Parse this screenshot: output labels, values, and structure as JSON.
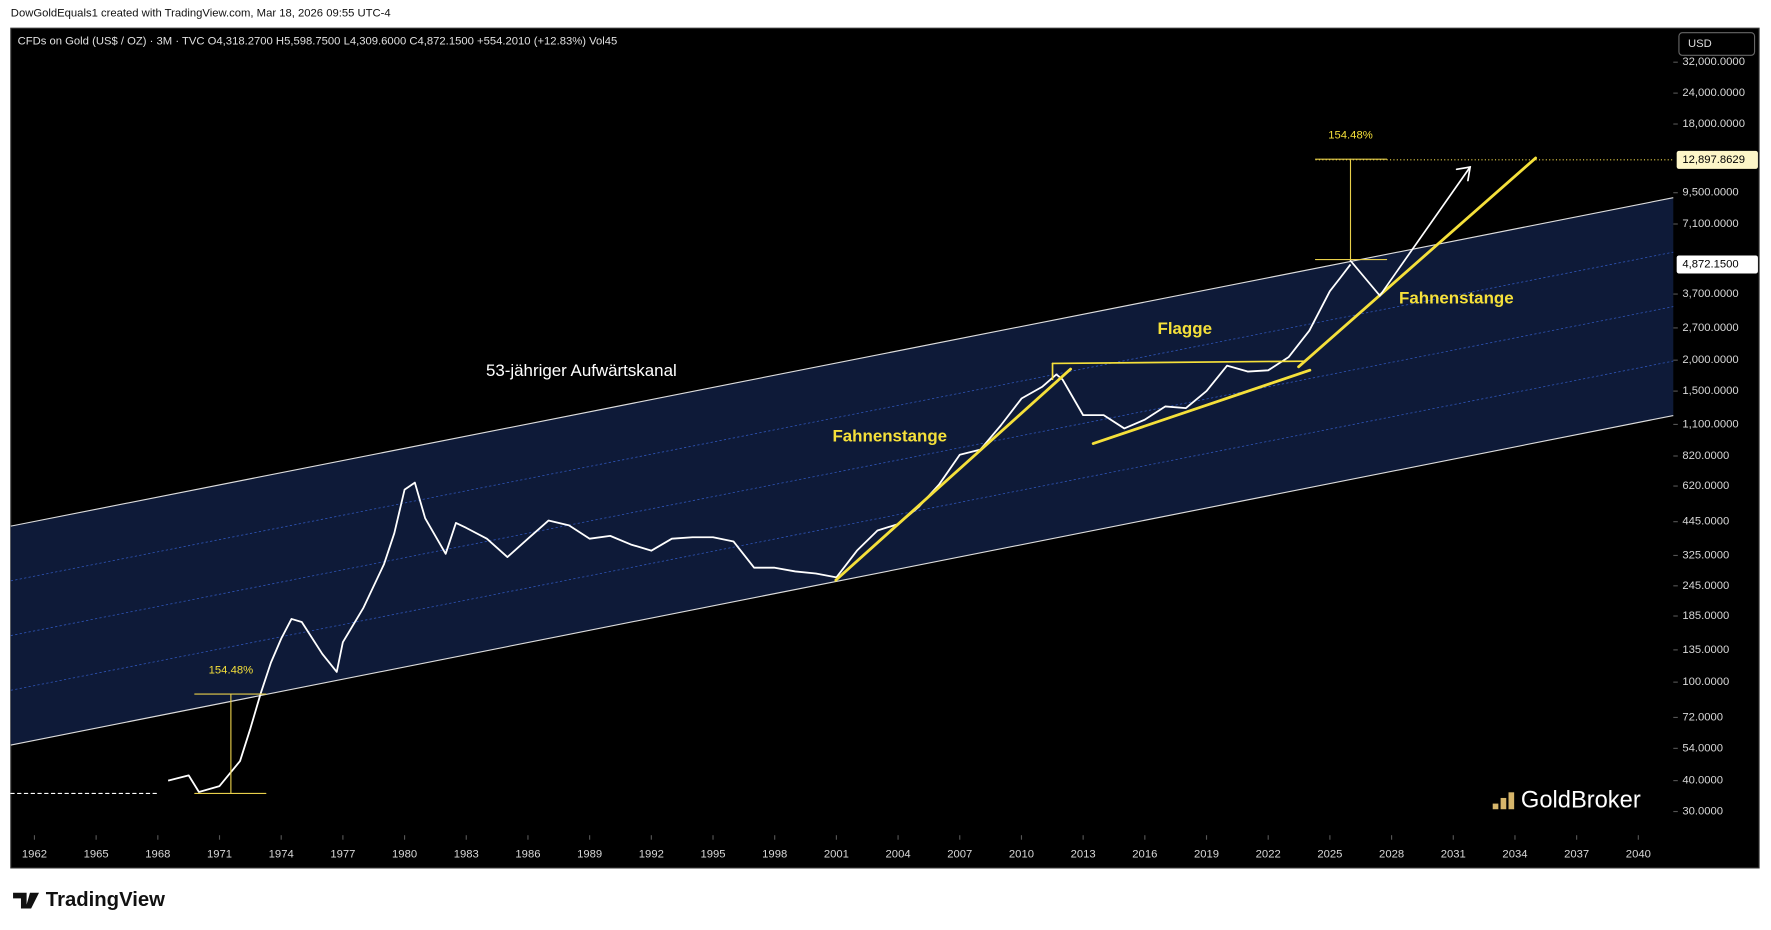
{
  "header": {
    "credit": "DowGoldEquals1 created with TradingView.com, Mar 18, 2026 09:55 UTC-4"
  },
  "chart_data": {
    "type": "line",
    "legend_text": "CFDs on Gold (US$ / OZ) · 3M · TVC   O4,318.2700  H5,598.7500  L4,309.6000  C4,872.1500  +554.2010 (+12.83%)  Vol45",
    "currency": "USD",
    "x": [
      1968.5,
      1969.5,
      1970,
      1971,
      1972,
      1972.5,
      1973,
      1973.5,
      1974,
      1974.5,
      1975,
      1976,
      1976.7,
      1977,
      1978,
      1979,
      1979.5,
      1980,
      1980.5,
      1981,
      1982,
      1982.5,
      1983,
      1984,
      1985,
      1986,
      1987,
      1988,
      1989,
      1990,
      1991,
      1992,
      1993,
      1994,
      1995,
      1996,
      1997,
      1998,
      1999,
      2000,
      2001,
      2002,
      2003,
      2004,
      2005,
      2006,
      2007,
      2008,
      2009,
      2010,
      2011,
      2011.7,
      2012,
      2013,
      2014,
      2015,
      2016,
      2017,
      2018,
      2019,
      2020,
      2021,
      2022,
      2023,
      2024,
      2025,
      2025.5,
      2026
    ],
    "series": [
      {
        "color": "#ffffff",
        "values": [
          40,
          42,
          36,
          38,
          48,
          65,
          90,
          120,
          150,
          180,
          175,
          130,
          110,
          145,
          200,
          300,
          400,
          600,
          640,
          460,
          330,
          440,
          420,
          380,
          320,
          380,
          450,
          430,
          380,
          390,
          360,
          340,
          380,
          385,
          385,
          370,
          290,
          290,
          280,
          275,
          265,
          340,
          410,
          435,
          510,
          630,
          830,
          870,
          1090,
          1400,
          1560,
          1750,
          1670,
          1200,
          1200,
          1060,
          1150,
          1300,
          1280,
          1500,
          1900,
          1800,
          1820,
          2060,
          2630,
          3800,
          4300,
          4872.15
        ]
      }
    ],
    "xlim": [
      1960.85,
      2041.7
    ],
    "xticks": [
      1962,
      1965,
      1968,
      1971,
      1974,
      1977,
      1980,
      1983,
      1986,
      1989,
      1992,
      1995,
      1998,
      2001,
      2004,
      2007,
      2010,
      2013,
      2016,
      2019,
      2022,
      2025,
      2028,
      2031,
      2034,
      2037,
      2040
    ],
    "ylim": [
      24.07,
      43900
    ],
    "log_scale": true,
    "yticks": [
      {
        "value": 30,
        "label": "30.0000"
      },
      {
        "value": 40,
        "label": "40.0000"
      },
      {
        "value": 54,
        "label": "54.0000"
      },
      {
        "value": 72,
        "label": "72.0000"
      },
      {
        "value": 100,
        "label": "100.0000"
      },
      {
        "value": 135,
        "label": "135.0000"
      },
      {
        "value": 185,
        "label": "185.0000"
      },
      {
        "value": 245,
        "label": "245.0000"
      },
      {
        "value": 325,
        "label": "325.0000"
      },
      {
        "value": 445,
        "label": "445.0000"
      },
      {
        "value": 620,
        "label": "620.0000"
      },
      {
        "value": 820,
        "label": "820.0000"
      },
      {
        "value": 1100,
        "label": "1,100.0000"
      },
      {
        "value": 1500,
        "label": "1,500.0000"
      },
      {
        "value": 2000,
        "label": "2,000.0000"
      },
      {
        "value": 2700,
        "label": "2,700.0000"
      },
      {
        "value": 3700,
        "label": "3,700.0000"
      },
      {
        "value": 7100,
        "label": "7,100.0000"
      },
      {
        "value": 9500,
        "label": "9,500.0000"
      },
      {
        "value": 18000,
        "label": "18,000.0000"
      },
      {
        "value": 24000,
        "label": "24,000.0000"
      },
      {
        "value": 32000,
        "label": "32,000.0000"
      }
    ],
    "channel": {
      "x": [
        1960.85,
        2041.7
      ],
      "upper": [
        427,
        9070
      ],
      "lower": [
        55.7,
        1195
      ],
      "color": "#0e1a38"
    },
    "price_lines": [
      {
        "value": 12897.8629,
        "label": "12,897.8629"
      },
      {
        "value": 4872.15,
        "label": "4,872.1500"
      }
    ],
    "annotations": [
      "53-jähriger Aufwärtskanal",
      "Fahnenstange",
      "Flagge",
      "Fahnenstange",
      "154.48%",
      "154.48%"
    ]
  },
  "branding": {
    "watermark": "GoldBroker",
    "footer": "TradingView"
  }
}
